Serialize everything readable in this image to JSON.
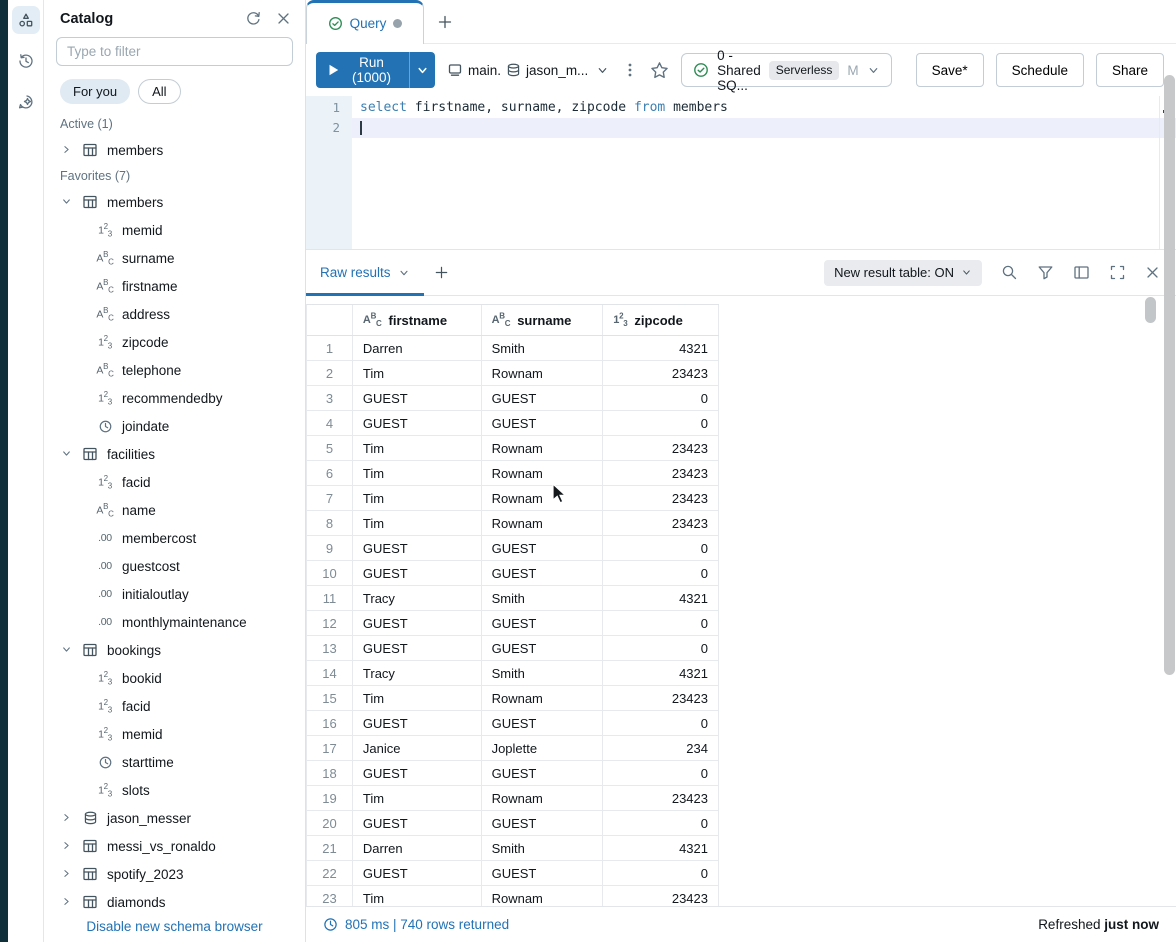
{
  "rail": {
    "items": [
      "schema-browser",
      "history",
      "assistant"
    ]
  },
  "catalog": {
    "title": "Catalog",
    "filter_placeholder": "Type to filter",
    "pills": [
      {
        "label": "For you",
        "active": true
      },
      {
        "label": "All",
        "active": false
      }
    ],
    "sections": [
      {
        "label": "Active (1)",
        "items": [
          {
            "label": "members",
            "icon": "table",
            "expander": "collapsed",
            "level": 0
          }
        ]
      },
      {
        "label": "Favorites (7)",
        "items": [
          {
            "label": "members",
            "icon": "table",
            "expander": "expanded",
            "level": 0
          },
          {
            "label": "memid",
            "icon": "number",
            "expander": "none",
            "level": 1
          },
          {
            "label": "surname",
            "icon": "string",
            "expander": "none",
            "level": 1
          },
          {
            "label": "firstname",
            "icon": "string",
            "expander": "none",
            "level": 1
          },
          {
            "label": "address",
            "icon": "string",
            "expander": "none",
            "level": 1
          },
          {
            "label": "zipcode",
            "icon": "number",
            "expander": "none",
            "level": 1
          },
          {
            "label": "telephone",
            "icon": "string",
            "expander": "none",
            "level": 1
          },
          {
            "label": "recommendedby",
            "icon": "number",
            "expander": "none",
            "level": 1
          },
          {
            "label": "joindate",
            "icon": "datetime",
            "expander": "none",
            "level": 1
          },
          {
            "label": "facilities",
            "icon": "table",
            "expander": "expanded",
            "level": 0
          },
          {
            "label": "facid",
            "icon": "number",
            "expander": "none",
            "level": 1
          },
          {
            "label": "name",
            "icon": "string",
            "expander": "none",
            "level": 1
          },
          {
            "label": "membercost",
            "icon": "decimal",
            "expander": "none",
            "level": 1
          },
          {
            "label": "guestcost",
            "icon": "decimal",
            "expander": "none",
            "level": 1
          },
          {
            "label": "initialoutlay",
            "icon": "decimal",
            "expander": "none",
            "level": 1
          },
          {
            "label": "monthlymaintenance",
            "icon": "decimal",
            "expander": "none",
            "level": 1
          },
          {
            "label": "bookings",
            "icon": "table",
            "expander": "expanded",
            "level": 0
          },
          {
            "label": "bookid",
            "icon": "number",
            "expander": "none",
            "level": 1
          },
          {
            "label": "facid",
            "icon": "number",
            "expander": "none",
            "level": 1
          },
          {
            "label": "memid",
            "icon": "number",
            "expander": "none",
            "level": 1
          },
          {
            "label": "starttime",
            "icon": "datetime",
            "expander": "none",
            "level": 1
          },
          {
            "label": "slots",
            "icon": "number",
            "expander": "none",
            "level": 1
          },
          {
            "label": "jason_messer",
            "icon": "database",
            "expander": "collapsed",
            "level": 0
          },
          {
            "label": "messi_vs_ronaldo",
            "icon": "table",
            "expander": "collapsed",
            "level": 0
          },
          {
            "label": "spotify_2023",
            "icon": "table",
            "expander": "collapsed",
            "level": 0
          },
          {
            "label": "diamonds",
            "icon": "table",
            "expander": "collapsed",
            "level": 0
          }
        ]
      }
    ],
    "footer_link": "Disable new schema browser"
  },
  "tabs": {
    "items": [
      {
        "label": "Query",
        "active": true,
        "dirty": true
      }
    ]
  },
  "toolbar": {
    "run_label": "Run (1000)",
    "context": {
      "catalog": "main.",
      "schema": "jason_m..."
    },
    "warehouse": {
      "name": "0 - Shared SQ...",
      "badge": "Serverless",
      "size": "M"
    },
    "save_label": "Save*",
    "schedule_label": "Schedule",
    "share_label": "Share"
  },
  "editor": {
    "lines": [
      {
        "number": "1",
        "current": false,
        "tokens": [
          {
            "t": "select",
            "k": true
          },
          {
            "t": " firstname, surname, zipcode ",
            "k": false
          },
          {
            "t": "from",
            "k": true
          },
          {
            "t": " members",
            "k": false
          }
        ]
      },
      {
        "number": "2",
        "current": true,
        "tokens": []
      }
    ]
  },
  "results": {
    "tab_label": "Raw results",
    "toggle_label": "New result table: ON",
    "columns": [
      {
        "name": "firstname",
        "type": "string"
      },
      {
        "name": "surname",
        "type": "string"
      },
      {
        "name": "zipcode",
        "type": "number"
      }
    ],
    "rows": [
      [
        "Darren",
        "Smith",
        "4321"
      ],
      [
        "Tim",
        "Rownam",
        "23423"
      ],
      [
        "GUEST",
        "GUEST",
        "0"
      ],
      [
        "GUEST",
        "GUEST",
        "0"
      ],
      [
        "Tim",
        "Rownam",
        "23423"
      ],
      [
        "Tim",
        "Rownam",
        "23423"
      ],
      [
        "Tim",
        "Rownam",
        "23423"
      ],
      [
        "Tim",
        "Rownam",
        "23423"
      ],
      [
        "GUEST",
        "GUEST",
        "0"
      ],
      [
        "GUEST",
        "GUEST",
        "0"
      ],
      [
        "Tracy",
        "Smith",
        "4321"
      ],
      [
        "GUEST",
        "GUEST",
        "0"
      ],
      [
        "GUEST",
        "GUEST",
        "0"
      ],
      [
        "Tracy",
        "Smith",
        "4321"
      ],
      [
        "Tim",
        "Rownam",
        "23423"
      ],
      [
        "GUEST",
        "GUEST",
        "0"
      ],
      [
        "Janice",
        "Joplette",
        "234"
      ],
      [
        "GUEST",
        "GUEST",
        "0"
      ],
      [
        "Tim",
        "Rownam",
        "23423"
      ],
      [
        "GUEST",
        "GUEST",
        "0"
      ],
      [
        "Darren",
        "Smith",
        "4321"
      ],
      [
        "GUEST",
        "GUEST",
        "0"
      ],
      [
        "Tim",
        "Rownam",
        "23423"
      ]
    ],
    "footer": {
      "stats": "805 ms | 740 rows returned",
      "refreshed_prefix": "Refreshed",
      "refreshed_time": "just now"
    }
  },
  "colors": {
    "accent": "#2272B4",
    "rail_strip": "#0F2F3B",
    "keyword": "#3C7FB1",
    "success_green": "#2E8C55"
  }
}
